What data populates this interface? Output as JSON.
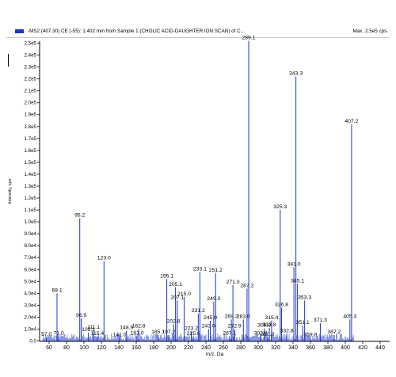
{
  "header": {
    "title": "-MS2 (407.30) CE (-55): 1.402 min from Sample 1 (CHOLIC ACID-DAUGHTER ION SCAN) of C...",
    "max_label": "Max. 2.5e5 cps.",
    "series_color": "#1a35cc"
  },
  "chart_data": {
    "type": "bar",
    "title": "-MS2 (407.30) CE (-55): 1.402 min from Sample 1 (CHOLIC ACID-DAUGHTER ION SCAN) of C...",
    "xlabel": "m/z, Da",
    "ylabel": "Intensity, cps",
    "xlim": [
      50,
      448
    ],
    "ylim": [
      0,
      255000
    ],
    "x_ticks": [
      60,
      80,
      100,
      120,
      140,
      160,
      180,
      200,
      220,
      240,
      260,
      280,
      300,
      320,
      340,
      360,
      380,
      400,
      420,
      440
    ],
    "y_ticks": [
      {
        "v": 0,
        "label": "0.0"
      },
      {
        "v": 10000,
        "label": "1.0e4"
      },
      {
        "v": 20000,
        "label": "2.0e4"
      },
      {
        "v": 30000,
        "label": "3.0e4"
      },
      {
        "v": 40000,
        "label": "4.0e4"
      },
      {
        "v": 50000,
        "label": "5.0e4"
      },
      {
        "v": 60000,
        "label": "6.0e4"
      },
      {
        "v": 70000,
        "label": "7.0e4"
      },
      {
        "v": 80000,
        "label": "8.0e4"
      },
      {
        "v": 90000,
        "label": "9.0e4"
      },
      {
        "v": 100000,
        "label": "1.0e5"
      },
      {
        "v": 110000,
        "label": "1.1e5"
      },
      {
        "v": 120000,
        "label": "1.2e5"
      },
      {
        "v": 130000,
        "label": "1.3e5"
      },
      {
        "v": 140000,
        "label": "1.4e5"
      },
      {
        "v": 150000,
        "label": "1.5e5"
      },
      {
        "v": 160000,
        "label": "1.6e5"
      },
      {
        "v": 170000,
        "label": "1.7e5"
      },
      {
        "v": 180000,
        "label": "1.8e5"
      },
      {
        "v": 190000,
        "label": "1.9e5"
      },
      {
        "v": 200000,
        "label": "2.0e5"
      },
      {
        "v": 210000,
        "label": "2.1e5"
      },
      {
        "v": 220000,
        "label": "2.2e5"
      },
      {
        "v": 230000,
        "label": "2.3e5"
      },
      {
        "v": 240000,
        "label": "2.4e5"
      },
      {
        "v": 250000,
        "label": "2.5e5"
      }
    ],
    "peaks": [
      {
        "mz": 57.0,
        "intensity": 3000,
        "label": "57.0"
      },
      {
        "mz": 69.1,
        "intensity": 40000,
        "label": "69.1"
      },
      {
        "mz": 71.0,
        "intensity": 4000,
        "label": "71.0"
      },
      {
        "mz": 95.2,
        "intensity": 103000,
        "label": "95.2"
      },
      {
        "mz": 96.9,
        "intensity": 19000,
        "label": "96.9"
      },
      {
        "mz": 105.1,
        "intensity": 7000,
        "label": "105.1"
      },
      {
        "mz": 111.1,
        "intensity": 9000,
        "label": "111.1"
      },
      {
        "mz": 115.4,
        "intensity": 3500,
        "label": "115.4"
      },
      {
        "mz": 123.0,
        "intensity": 67000,
        "label": "123.0"
      },
      {
        "mz": 141.0,
        "intensity": 2500,
        "label": "141.0"
      },
      {
        "mz": 148.9,
        "intensity": 8500,
        "label": "148.9"
      },
      {
        "mz": 161.0,
        "intensity": 4000,
        "label": "161.0"
      },
      {
        "mz": 162.8,
        "intensity": 10000,
        "label": "162.8"
      },
      {
        "mz": 185.1,
        "intensity": 5000,
        "label": "185.1"
      },
      {
        "mz": 195.1,
        "intensity": 52000,
        "label": "195.1"
      },
      {
        "mz": 197.2,
        "intensity": 5000,
        "label": "197.2"
      },
      {
        "mz": 202.8,
        "intensity": 14000,
        "label": "202.8"
      },
      {
        "mz": 205.1,
        "intensity": 45000,
        "label": "205.1"
      },
      {
        "mz": 207.1,
        "intensity": 34000,
        "label": "207.1"
      },
      {
        "mz": 215.0,
        "intensity": 37000,
        "label": "215.0"
      },
      {
        "mz": 223.2,
        "intensity": 8000,
        "label": "223.2"
      },
      {
        "mz": 225.6,
        "intensity": 3500,
        "label": "225.6"
      },
      {
        "mz": 231.2,
        "intensity": 23000,
        "label": "231.2"
      },
      {
        "mz": 233.1,
        "intensity": 58000,
        "label": "233.1"
      },
      {
        "mz": 243.0,
        "intensity": 10000,
        "label": "243.0"
      },
      {
        "mz": 245.0,
        "intensity": 17000,
        "label": "245.0"
      },
      {
        "mz": 249.0,
        "intensity": 33000,
        "label": "249.0"
      },
      {
        "mz": 251.2,
        "intensity": 57000,
        "label": "251.2"
      },
      {
        "mz": 267.1,
        "intensity": 4000,
        "label": "267.1"
      },
      {
        "mz": 269.2,
        "intensity": 18000,
        "label": "269.2"
      },
      {
        "mz": 271.0,
        "intensity": 47000,
        "label": "271.0"
      },
      {
        "mz": 272.9,
        "intensity": 10000,
        "label": "272.9"
      },
      {
        "mz": 283.0,
        "intensity": 18000,
        "label": "283.0"
      },
      {
        "mz": 287.2,
        "intensity": 44000,
        "label": "287.2"
      },
      {
        "mz": 289.1,
        "intensity": 252000,
        "label": "289.1"
      },
      {
        "mz": 302.8,
        "intensity": 4000,
        "label": "302.8"
      },
      {
        "mz": 306.9,
        "intensity": 10500,
        "label": "306.9"
      },
      {
        "mz": 310.9,
        "intensity": 3000,
        "label": "310.9"
      },
      {
        "mz": 312.8,
        "intensity": 11000,
        "label": "312.8"
      },
      {
        "mz": 315.4,
        "intensity": 17000,
        "label": "315.4"
      },
      {
        "mz": 325.3,
        "intensity": 110000,
        "label": "325.3"
      },
      {
        "mz": 326.8,
        "intensity": 28000,
        "label": "326.8"
      },
      {
        "mz": 332.8,
        "intensity": 6000,
        "label": "332.8"
      },
      {
        "mz": 341.0,
        "intensity": 62000,
        "label": "341.0"
      },
      {
        "mz": 343.3,
        "intensity": 222000,
        "label": "343.3"
      },
      {
        "mz": 345.1,
        "intensity": 48000,
        "label": "345.1"
      },
      {
        "mz": 351.1,
        "intensity": 13000,
        "label": "351.1"
      },
      {
        "mz": 353.3,
        "intensity": 34000,
        "label": "353.3"
      },
      {
        "mz": 359.8,
        "intensity": 2500,
        "label": "359.8"
      },
      {
        "mz": 371.3,
        "intensity": 15000,
        "label": "371.3"
      },
      {
        "mz": 387.2,
        "intensity": 5000,
        "label": "387.2"
      },
      {
        "mz": 405.3,
        "intensity": 18000,
        "label": "405.3"
      },
      {
        "mz": 407.2,
        "intensity": 182000,
        "label": "407.2"
      }
    ]
  }
}
